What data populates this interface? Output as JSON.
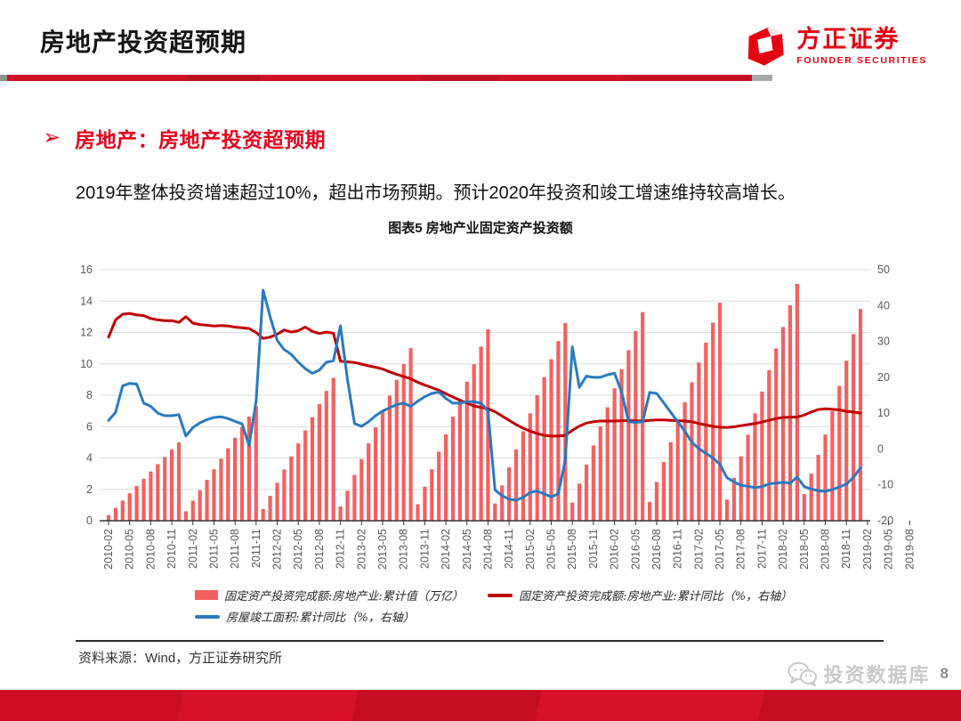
{
  "page": {
    "title": "房地产投资超预期",
    "page_number": "8"
  },
  "logo": {
    "cn": "方正证券",
    "en": "FOUNDER SECURITIES"
  },
  "section": {
    "bullet": "➢",
    "heading": "房地产：房地产投资超预期",
    "body": "2019年整体投资增速超过10%，超出市场预期。预计2020年投资和竣工增速维持较高增长。"
  },
  "footer": {
    "source": "资料来源：Wind，方正证券研究所"
  },
  "watermark": {
    "text": "投资数据库",
    "icon": "wechat-icon"
  },
  "colors": {
    "accent_red": "#E60012",
    "bar": "#F46060",
    "line_red": "#C00000",
    "line_blue": "#2979C1",
    "axis_text": "#595959",
    "grid": "#DCDCDC"
  },
  "chart_data": {
    "type": "combo",
    "title": "图表5 房地产业固定资产投资额",
    "n_points": 108,
    "points_per_tick": 3,
    "x_tick_labels": [
      "2010-02",
      "2010-05",
      "2010-08",
      "2010-11",
      "2011-02",
      "2011-05",
      "2011-08",
      "2011-11",
      "2012-02",
      "2012-05",
      "2012-08",
      "2012-11",
      "2013-02",
      "2013-05",
      "2013-08",
      "2013-11",
      "2014-02",
      "2014-05",
      "2014-08",
      "2014-11",
      "2015-02",
      "2015-05",
      "2015-08",
      "2015-11",
      "2016-02",
      "2016-05",
      "2016-08",
      "2016-11",
      "2017-02",
      "2017-05",
      "2017-08",
      "2017-11",
      "2018-02",
      "2018-05",
      "2018-08",
      "2018-11",
      "2019-02",
      "2019-05",
      "2019-08"
    ],
    "left_axis": {
      "min": 0,
      "max": 16,
      "ticks": [
        "0",
        "2",
        "4",
        "6",
        "8",
        "10",
        "12",
        "14",
        "16"
      ]
    },
    "right_axis": {
      "min": -20,
      "max": 50,
      "ticks": [
        "-20",
        "-10",
        "0",
        "10",
        "20",
        "30",
        "40",
        "50"
      ]
    },
    "grid": true,
    "legend_position": "bottom",
    "series": [
      {
        "name": "固定资产投资完成额:房地产业:累计值（万亿）",
        "type": "bar",
        "axis": "left",
        "color": "#F46060",
        "values": [
          0.35,
          0.82,
          1.28,
          1.75,
          2.21,
          2.68,
          3.14,
          3.61,
          4.07,
          4.54,
          5.0,
          0.6,
          1.27,
          1.94,
          2.61,
          3.28,
          3.95,
          4.62,
          5.29,
          5.96,
          6.63,
          7.3,
          0.75,
          1.59,
          2.42,
          3.26,
          4.09,
          4.93,
          5.76,
          6.6,
          7.43,
          8.27,
          9.1,
          0.9,
          1.91,
          2.92,
          3.93,
          4.94,
          5.95,
          6.96,
          7.97,
          8.98,
          9.99,
          11.0,
          1.05,
          2.17,
          3.28,
          4.4,
          5.51,
          6.63,
          7.74,
          8.86,
          9.97,
          11.09,
          12.2,
          1.1,
          2.25,
          3.4,
          4.55,
          5.7,
          6.85,
          8.0,
          9.15,
          10.3,
          11.45,
          12.6,
          1.15,
          2.37,
          3.58,
          4.8,
          6.01,
          7.23,
          8.44,
          9.66,
          10.87,
          12.09,
          13.3,
          1.2,
          2.47,
          3.74,
          5.01,
          6.28,
          7.55,
          8.82,
          10.09,
          11.36,
          12.63,
          13.9,
          1.35,
          2.73,
          4.1,
          5.48,
          6.85,
          8.23,
          9.6,
          10.98,
          12.35,
          13.73,
          15.1,
          1.7,
          3.0,
          4.2,
          5.5,
          7.0,
          8.6,
          10.2,
          11.9,
          13.5
        ]
      },
      {
        "name": "固定资产投资完成额:房地产业:累计同比（%，右轴）",
        "type": "line",
        "axis": "right",
        "color": "#C00000",
        "values": [
          31.2,
          36.0,
          37.6,
          37.8,
          37.4,
          37.2,
          36.4,
          36.0,
          35.8,
          35.8,
          35.3,
          36.9,
          35.1,
          34.7,
          34.5,
          34.3,
          34.4,
          34.3,
          34.0,
          33.8,
          33.6,
          32.5,
          30.8,
          31.2,
          32.0,
          33.2,
          32.6,
          33.0,
          34.0,
          32.8,
          32.2,
          32.6,
          32.3,
          24.5,
          24.3,
          24.1,
          23.7,
          23.2,
          22.8,
          22.3,
          21.5,
          20.8,
          20.2,
          19.6,
          18.6,
          17.8,
          17.1,
          16.4,
          15.4,
          14.5,
          13.6,
          12.8,
          12.0,
          11.6,
          11.2,
          10.4,
          9.2,
          8.0,
          6.8,
          5.8,
          5.0,
          4.3,
          3.8,
          3.6,
          3.6,
          3.8,
          5.2,
          6.4,
          7.2,
          7.6,
          7.8,
          7.8,
          7.8,
          7.9,
          7.9,
          7.9,
          7.8,
          8.0,
          8.1,
          8.1,
          8.0,
          7.9,
          7.8,
          7.6,
          7.1,
          6.7,
          6.3,
          6.1,
          6.0,
          6.2,
          6.5,
          6.8,
          7.1,
          7.5,
          8.0,
          8.5,
          8.8,
          8.9,
          8.9,
          9.5,
          10.3,
          11.0,
          11.2,
          11.1,
          10.9,
          10.5,
          10.3,
          10.0
        ]
      },
      {
        "name": "房屋竣工面积:累计同比（%，右轴）",
        "type": "line",
        "axis": "right",
        "color": "#2979C1",
        "values": [
          8.0,
          10.2,
          17.6,
          18.3,
          18.1,
          12.8,
          11.9,
          10.0,
          9.3,
          9.3,
          9.6,
          3.6,
          6.0,
          7.3,
          8.2,
          8.8,
          9.0,
          8.5,
          7.7,
          7.0,
          1.0,
          13.3,
          44.3,
          36.9,
          30.3,
          27.7,
          26.4,
          24.2,
          22.4,
          21.1,
          22.0,
          24.2,
          24.6,
          34.3,
          19.4,
          7.1,
          6.3,
          7.6,
          9.3,
          10.6,
          11.5,
          12.4,
          12.8,
          11.9,
          13.3,
          14.6,
          15.5,
          15.9,
          14.1,
          12.8,
          12.8,
          13.2,
          13.2,
          12.8,
          10.6,
          -11.4,
          -13.0,
          -14.0,
          -14.3,
          -13.5,
          -12.1,
          -11.7,
          -12.5,
          -13.4,
          -12.5,
          -3.0,
          28.5,
          17.2,
          20.3,
          20.0,
          20.0,
          20.7,
          21.1,
          16.0,
          7.6,
          7.4,
          7.6,
          15.8,
          15.5,
          12.9,
          10.2,
          7.6,
          5.0,
          1.9,
          0.1,
          -1.2,
          -2.5,
          -4.3,
          -8.0,
          -9.2,
          -10.1,
          -10.4,
          -10.8,
          -10.5,
          -9.7,
          -9.5,
          -9.3,
          -9.5,
          -7.8,
          -10.5,
          -11.2,
          -11.6,
          -11.8,
          -11.3,
          -10.6,
          -9.8,
          -7.9,
          -5.3
        ]
      }
    ]
  }
}
